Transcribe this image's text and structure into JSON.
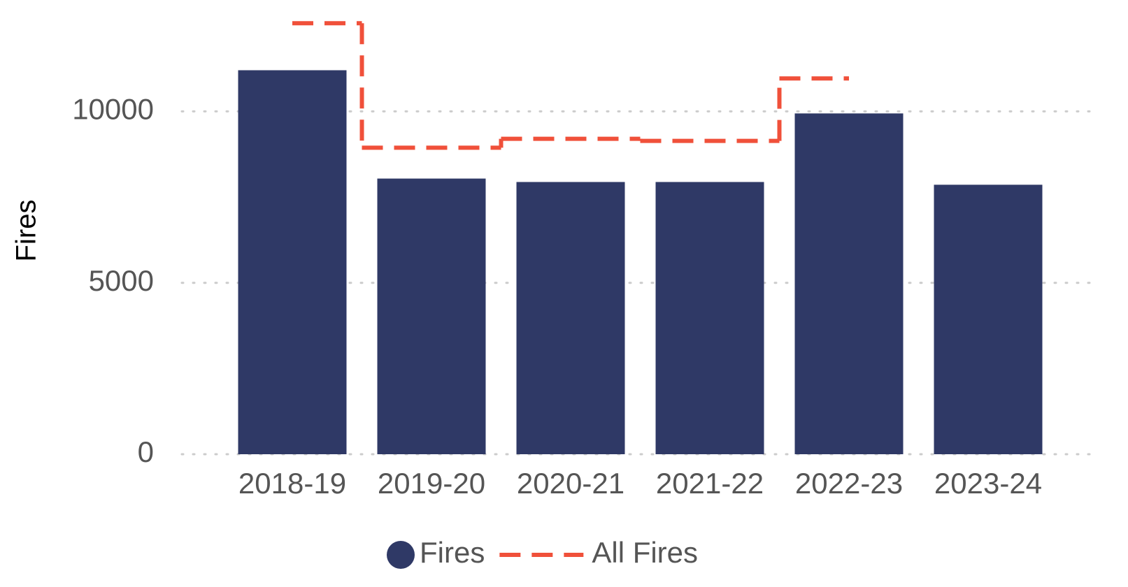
{
  "chart_data": {
    "type": "bar",
    "y_label": "Fires",
    "categories": [
      "2018-19",
      "2019-20",
      "2020-21",
      "2021-22",
      "2022-23",
      "2023-24"
    ],
    "series": [
      {
        "name": "Fires",
        "type": "bar",
        "color": "#2f3966",
        "values": [
          11200,
          8040,
          7940,
          7940,
          9940,
          7860
        ]
      },
      {
        "name": "All Fires",
        "type": "step",
        "color": "#f0503a",
        "values": [
          12570,
          8940,
          9200,
          9140,
          10960,
          null
        ]
      }
    ],
    "ylim": [
      0,
      12800
    ],
    "yticks": [
      0,
      5000,
      10000
    ],
    "grid": true,
    "legend": "bottom"
  }
}
